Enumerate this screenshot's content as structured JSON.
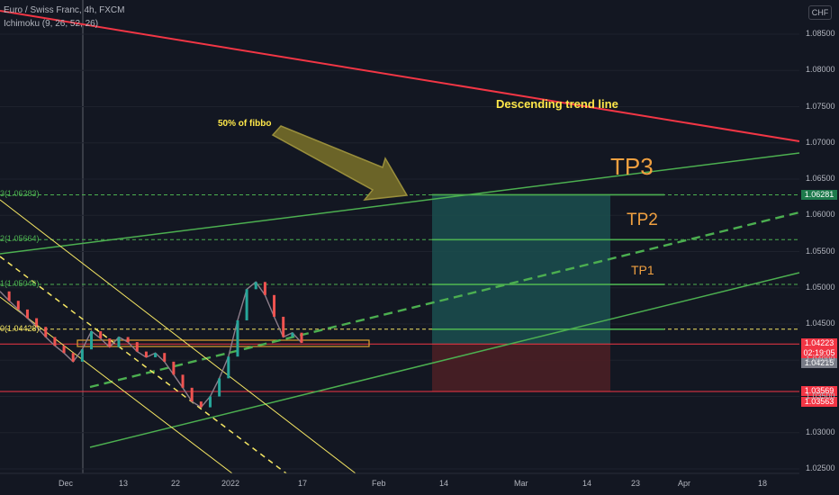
{
  "header": {
    "symbol_line": "Euro / Swiss Franc, 4h, FXCM",
    "indicator_line": "Ichimoku (9, 26, 52, 26)",
    "currency": "CHF"
  },
  "colors": {
    "background": "#131722",
    "trend_line": "#f23645",
    "channel": "#4caf50",
    "fib": "#4caf50",
    "yellow": "#f5e663",
    "tp_box": "#1b4f4f",
    "sl_box": "#4a1f25",
    "annotation_orange": "#f0a040",
    "annotation_yellow": "#ffe84a",
    "arrow_fill": "#6b6428"
  },
  "annotations": {
    "fibbo": "50% of fibbo",
    "trend": "Descending trend line",
    "tp3": "TP3",
    "tp2": "TP2",
    "tp1": "TP1"
  },
  "fib_labels": [
    {
      "text": "3(1.06283)",
      "price": 1.06283
    },
    {
      "text": "2(1.05664)",
      "price": 1.05664
    },
    {
      "text": "1(1.05046)",
      "price": 1.05046
    },
    {
      "text": "0(1.04428)",
      "price": 1.04428
    }
  ],
  "price_tags": [
    {
      "text": "1.06281",
      "bg": "#1e7a4c",
      "price": 1.06281
    },
    {
      "text": "1.04223",
      "bg": "#f23645",
      "price": 1.04223
    },
    {
      "text": "02:19:05",
      "bg": "#f23645",
      "price": 1.04095
    },
    {
      "text": "1.04215",
      "bg": "#787b86",
      "price": 1.03955
    },
    {
      "text": "1.03569",
      "bg": "#f23645",
      "price": 1.03569
    },
    {
      "text": "1.03563",
      "bg": "#f23645",
      "price": 1.03425
    }
  ],
  "chart_data": {
    "type": "line",
    "title": "Euro / Swiss Franc, 4h, FXCM",
    "y_axis": {
      "ticks": [
        "1.08500",
        "1.08000",
        "1.07500",
        "1.07000",
        "1.06500",
        "1.06000",
        "1.05500",
        "1.05000",
        "1.04500",
        "1.04000",
        "1.03500",
        "1.03000",
        "1.02500"
      ],
      "range": [
        1.024,
        1.088
      ]
    },
    "x_axis": {
      "ticks": [
        "Dec",
        "13",
        "22",
        "2022",
        "17",
        "Feb",
        "14",
        "Mar",
        "14",
        "23",
        "Apr",
        "18"
      ]
    },
    "series": [
      {
        "values": [
          1.0495,
          1.0482,
          1.047,
          1.0458,
          1.0446,
          1.0432,
          1.042,
          1.041,
          1.0398,
          1.0415,
          1.044,
          1.043,
          1.0418,
          1.0432,
          1.0425,
          1.0412,
          1.0404,
          1.041,
          1.0398,
          1.038,
          1.0362,
          1.0343,
          1.0335,
          1.035,
          1.0375,
          1.0405,
          1.0455,
          1.0498,
          1.0508,
          1.049,
          1.046,
          1.0432,
          1.0438,
          1.0424
        ]
      }
    ],
    "fib_levels": [
      1.06283,
      1.05664,
      1.05046,
      1.04428
    ],
    "support_lines": [
      1.04223,
      1.03569
    ],
    "position": {
      "entry": 1.04223,
      "take_profit": 1.06281,
      "stop_loss": 1.03569
    }
  }
}
